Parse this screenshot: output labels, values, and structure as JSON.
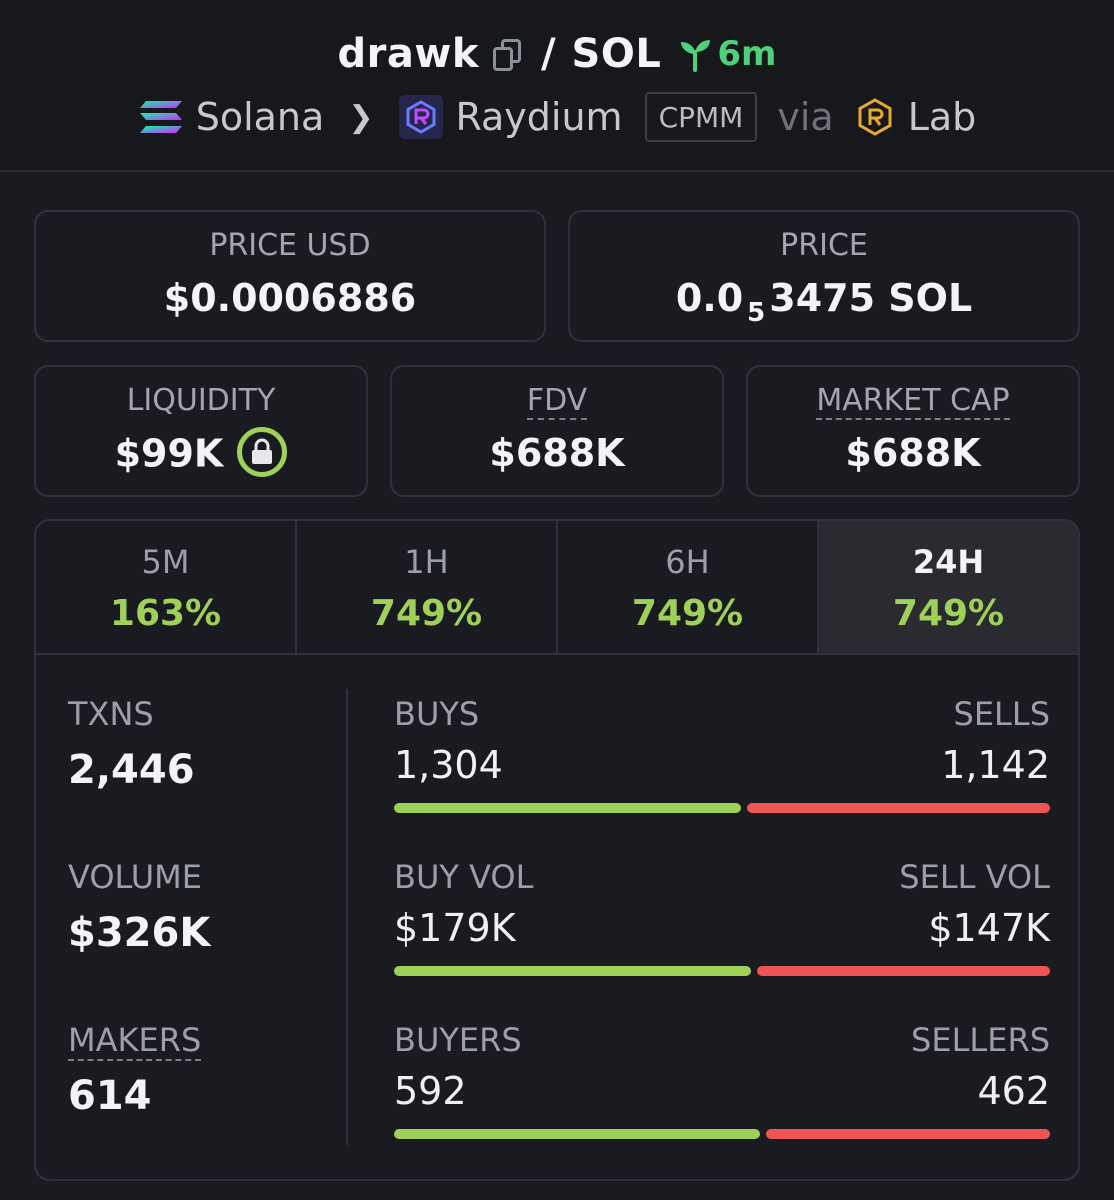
{
  "header": {
    "token_symbol": "drawk",
    "separator": "/",
    "quote_symbol": "SOL",
    "age": "6m",
    "chain": "Solana",
    "dex": "Raydium",
    "pool_type": "CPMM",
    "via_label": "via",
    "launchpad": "Lab"
  },
  "price_usd": {
    "label": "PRICE USD",
    "value": "$0.0006886"
  },
  "price": {
    "label": "PRICE",
    "prefix": "0.0",
    "zeros_subscript": "5",
    "digits": "3475",
    "unit": "SOL"
  },
  "liquidity": {
    "label": "LIQUIDITY",
    "value": "$99K"
  },
  "fdv": {
    "label": "FDV",
    "value": "$688K"
  },
  "market_cap": {
    "label": "MARKET CAP",
    "value": "$688K"
  },
  "tabs": [
    {
      "label": "5M",
      "change": "163%"
    },
    {
      "label": "1H",
      "change": "749%"
    },
    {
      "label": "6H",
      "change": "749%"
    },
    {
      "label": "24H",
      "change": "749%",
      "active": true
    }
  ],
  "metrics": {
    "txns": {
      "label": "TXNS",
      "value": "2,446"
    },
    "volume": {
      "label": "VOLUME",
      "value": "$326K"
    },
    "makers": {
      "label": "MAKERS",
      "value": "614"
    }
  },
  "splits": {
    "txns": {
      "left_label": "BUYS",
      "right_label": "SELLS",
      "left_value": "1,304",
      "right_value": "1,142",
      "left_fraction": 0.533
    },
    "volume": {
      "left_label": "BUY VOL",
      "right_label": "SELL VOL",
      "left_value": "$179K",
      "right_value": "$147K",
      "left_fraction": 0.549
    },
    "makers": {
      "left_label": "BUYERS",
      "right_label": "SELLERS",
      "left_value": "592",
      "right_value": "462",
      "left_fraction": 0.562
    }
  },
  "colors": {
    "positive": "#9fd057",
    "negative": "#ef5455",
    "age_green": "#4fd07a"
  }
}
